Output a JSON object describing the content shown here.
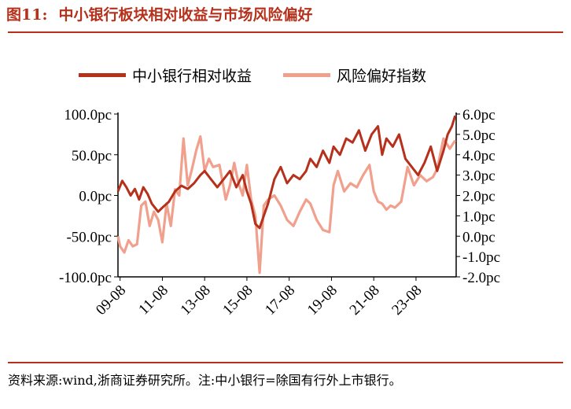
{
  "header": {
    "fig_num": "图11:",
    "title": "中小银行板块相对收益与市场风险偏好"
  },
  "footer": {
    "source": "资料来源:wind,浙商证券研究所。注:中小银行=除国有行外上市银行。"
  },
  "colors": {
    "series1": "#b5311c",
    "series2": "#f0a08c",
    "title": "#b5311c"
  },
  "chart_data": {
    "type": "line",
    "x_tick_labels": [
      "09-08",
      "11-08",
      "13-08",
      "15-08",
      "17-08",
      "19-08",
      "21-08",
      "23-08"
    ],
    "x_range": [
      2008.9,
      2024.9
    ],
    "y_left": {
      "ticks": [
        "100.0pc",
        "50.0pc",
        "0.0pc",
        "-50.0pc",
        "-100.0pc"
      ],
      "range": [
        -100,
        100
      ]
    },
    "y_right": {
      "ticks": [
        "6.0pc",
        "5.0pc",
        "4.0pc",
        "3.0pc",
        "2.0pc",
        "1.0pc",
        "0.0pc",
        "-1.0pc",
        "-2.0pc"
      ],
      "range": [
        -2,
        6
      ]
    },
    "legend": {
      "placement": "top"
    },
    "series": [
      {
        "name": "中小银行相对收益",
        "axis": "left",
        "x": [
          2008.9,
          2009.1,
          2009.3,
          2009.5,
          2009.7,
          2009.9,
          2010.1,
          2010.3,
          2010.5,
          2010.8,
          2011.0,
          2011.3,
          2011.6,
          2011.9,
          2012.2,
          2012.5,
          2012.8,
          2013.0,
          2013.3,
          2013.6,
          2013.9,
          2014.2,
          2014.5,
          2014.8,
          2015.0,
          2015.2,
          2015.4,
          2015.6,
          2015.8,
          2016.0,
          2016.3,
          2016.6,
          2016.9,
          2017.2,
          2017.5,
          2017.8,
          2018.0,
          2018.3,
          2018.6,
          2018.9,
          2019.1,
          2019.4,
          2019.7,
          2020.0,
          2020.3,
          2020.6,
          2020.9,
          2021.2,
          2021.4,
          2021.6,
          2021.9,
          2022.2,
          2022.5,
          2022.8,
          2023.1,
          2023.4,
          2023.7,
          2024.0,
          2024.3,
          2024.5,
          2024.7,
          2024.85
        ],
        "y": [
          5,
          18,
          10,
          0,
          8,
          -5,
          10,
          2,
          -10,
          -20,
          -15,
          -8,
          5,
          12,
          8,
          15,
          25,
          30,
          20,
          10,
          20,
          30,
          10,
          25,
          5,
          -10,
          -35,
          -40,
          -25,
          -10,
          20,
          35,
          15,
          25,
          20,
          30,
          45,
          35,
          55,
          40,
          60,
          50,
          70,
          65,
          80,
          55,
          75,
          85,
          50,
          70,
          60,
          75,
          45,
          35,
          25,
          40,
          60,
          30,
          55,
          75,
          85,
          98
        ]
      },
      {
        "name": "风险偏好指数",
        "axis": "right",
        "x": [
          2008.9,
          2009.0,
          2009.2,
          2009.4,
          2009.6,
          2009.8,
          2010.0,
          2010.2,
          2010.4,
          2010.6,
          2010.8,
          2011.0,
          2011.2,
          2011.4,
          2011.6,
          2011.8,
          2012.0,
          2012.2,
          2012.4,
          2012.6,
          2012.8,
          2013.0,
          2013.2,
          2013.4,
          2013.7,
          2014.0,
          2014.2,
          2014.4,
          2014.6,
          2014.8,
          2015.0,
          2015.2,
          2015.4,
          2015.6,
          2015.8,
          2016.0,
          2016.3,
          2016.6,
          2016.9,
          2017.2,
          2017.5,
          2017.8,
          2018.0,
          2018.3,
          2018.6,
          2018.9,
          2019.1,
          2019.3,
          2019.6,
          2019.9,
          2020.2,
          2020.5,
          2020.8,
          2021.0,
          2021.2,
          2021.4,
          2021.6,
          2021.8,
          2022.0,
          2022.3,
          2022.6,
          2022.9,
          2023.2,
          2023.5,
          2023.8,
          2024.0,
          2024.3,
          2024.6,
          2024.85
        ],
        "y": [
          0.0,
          -0.5,
          -0.8,
          -0.2,
          -0.5,
          -0.4,
          1.5,
          1.7,
          0.5,
          1.2,
          0.8,
          -0.3,
          1.6,
          0.5,
          2.3,
          2.0,
          4.8,
          2.5,
          3.3,
          4.2,
          4.9,
          3.2,
          3.8,
          3.4,
          3.5,
          1.8,
          2.5,
          3.6,
          2.6,
          2.0,
          3.5,
          1.8,
          1.0,
          -1.8,
          1.5,
          1.8,
          2.0,
          1.5,
          0.8,
          0.5,
          1.2,
          1.8,
          1.6,
          0.8,
          0.3,
          0.2,
          2.5,
          3.2,
          2.2,
          2.6,
          2.4,
          3.0,
          3.5,
          2.2,
          1.7,
          1.6,
          1.3,
          1.5,
          1.4,
          1.7,
          3.4,
          2.5,
          3.0,
          2.7,
          2.9,
          3.3,
          4.8,
          4.3,
          4.7
        ]
      }
    ]
  }
}
